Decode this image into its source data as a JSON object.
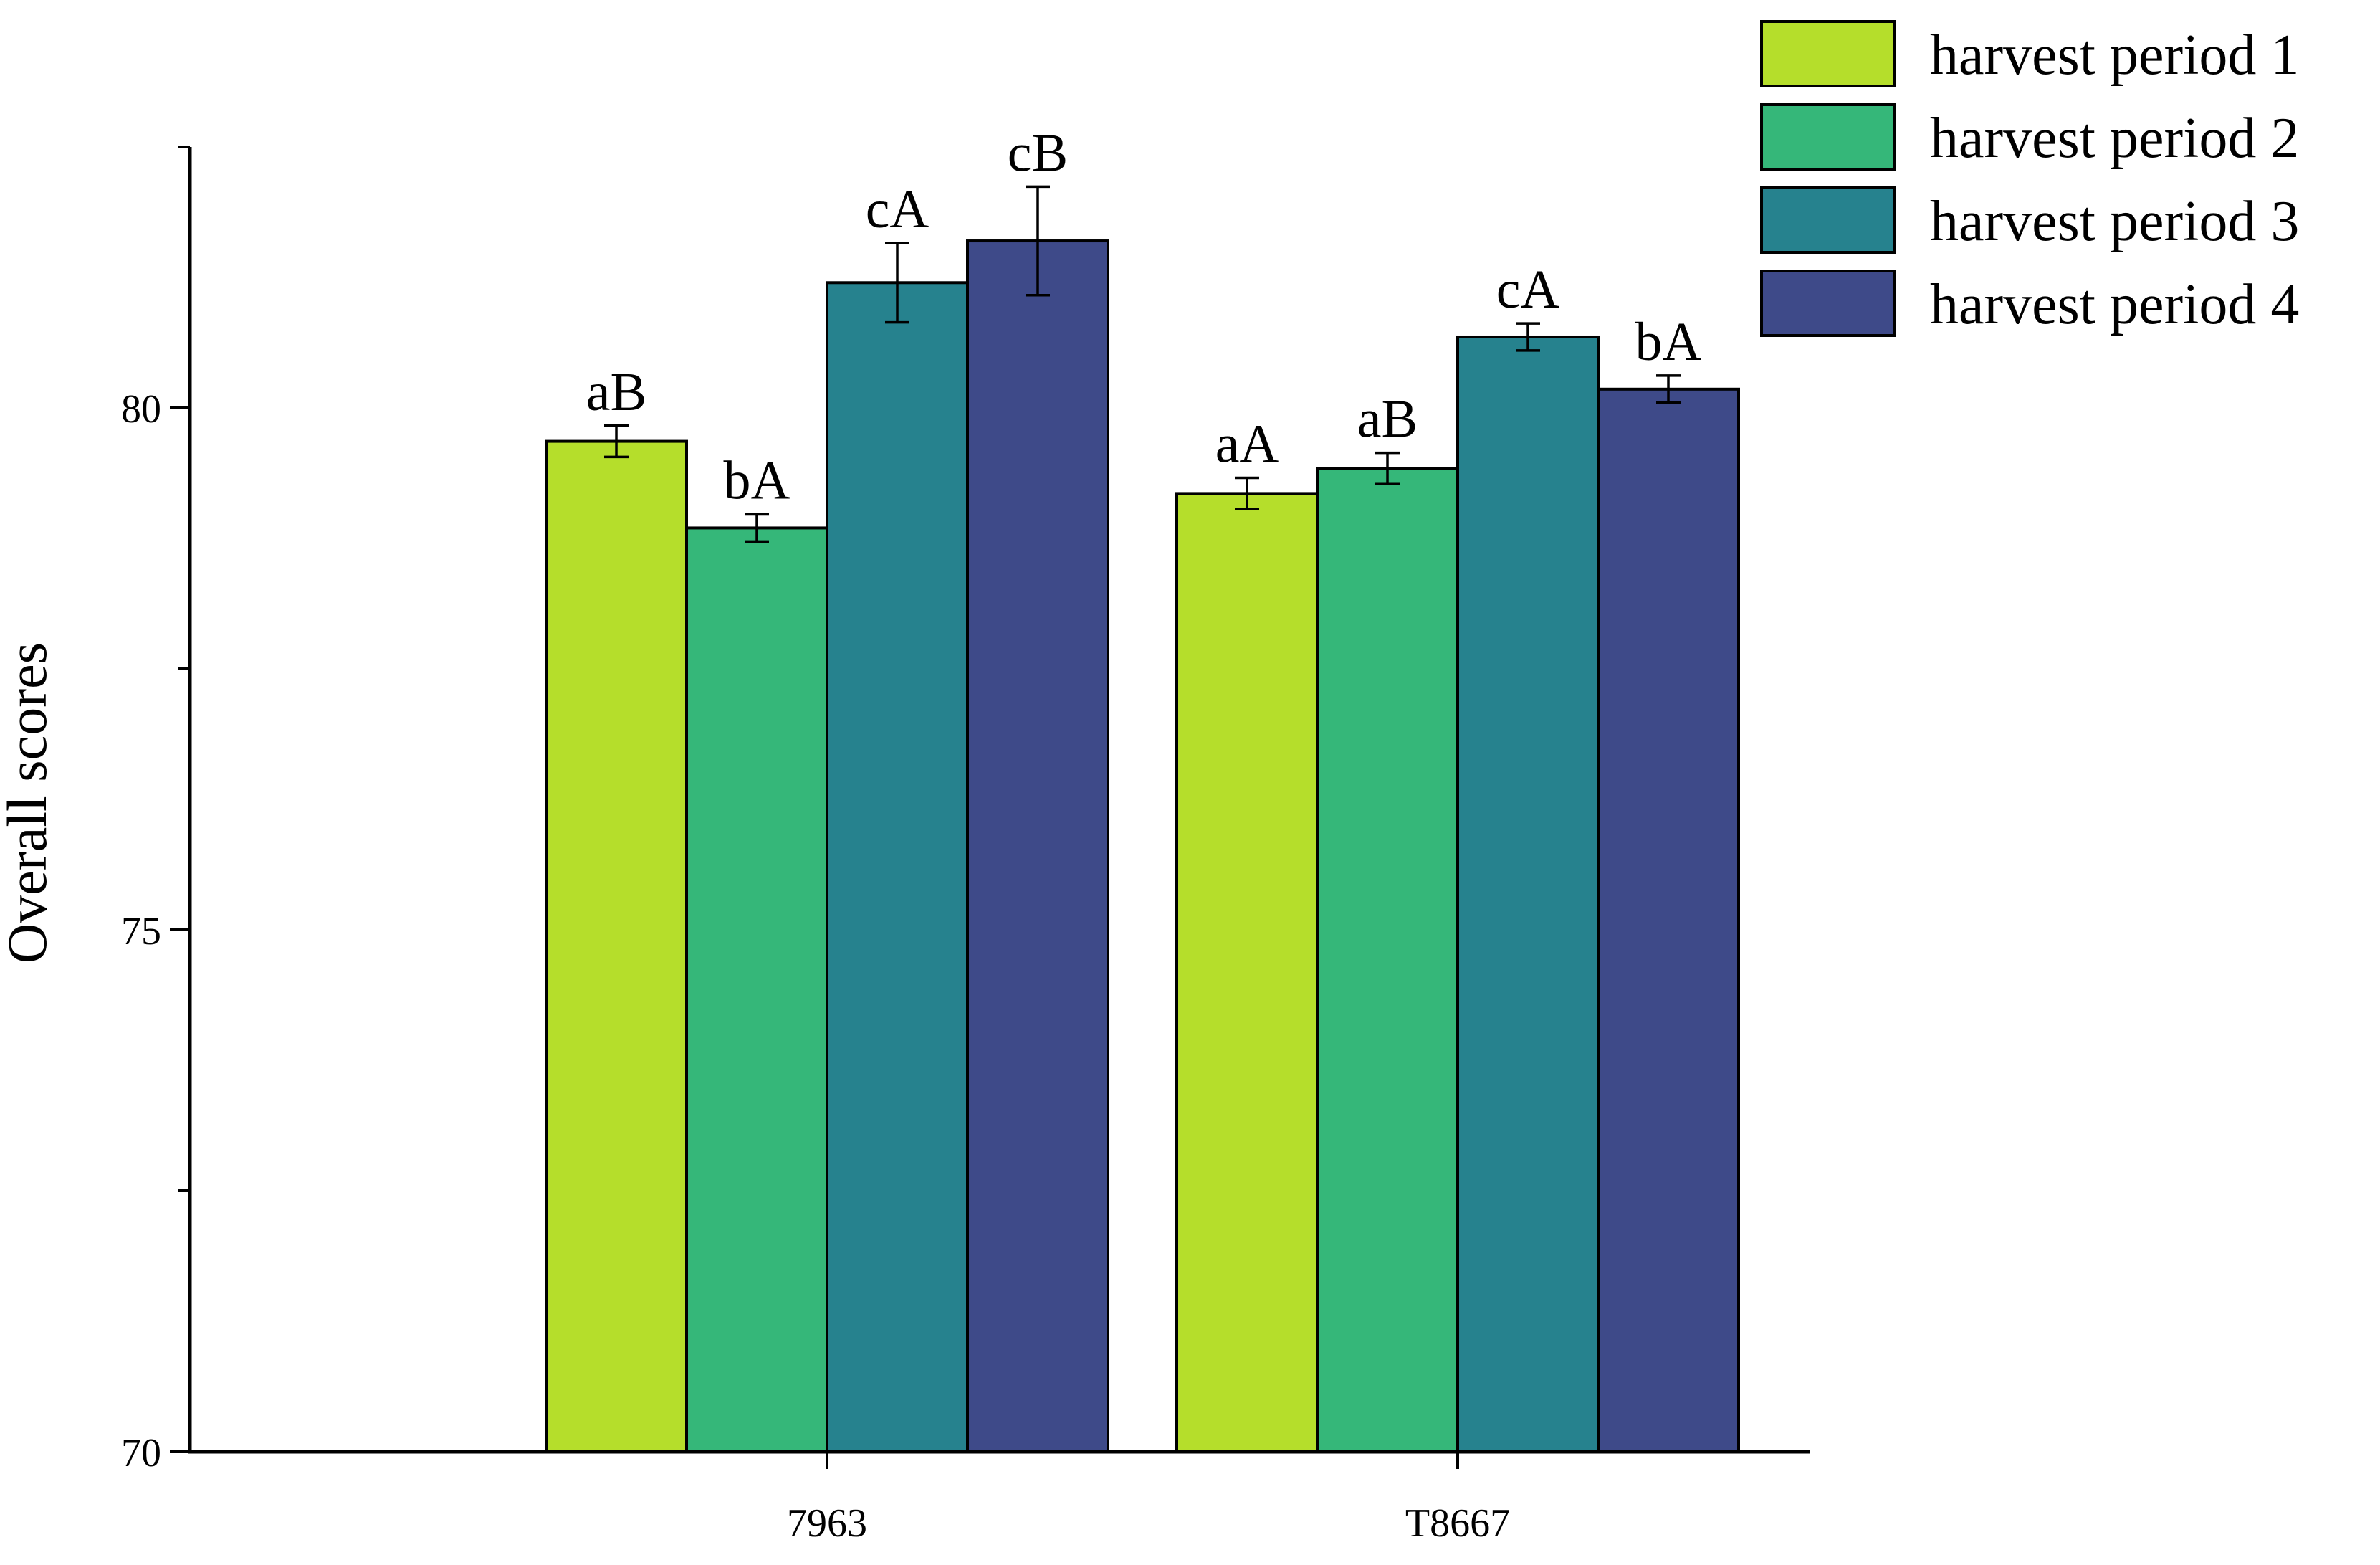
{
  "chart_data": {
    "type": "bar",
    "title": "",
    "xlabel": "",
    "ylabel": "Overall scores",
    "ylim": [
      70,
      82.5
    ],
    "yticks": [
      70,
      75,
      80
    ],
    "grid": false,
    "legend_placement": "top-right",
    "categories": [
      "7963",
      "T8667"
    ],
    "series": [
      {
        "name": "harvest period 1",
        "color": "#B5DE2B",
        "values": [
          79.68,
          79.18
        ],
        "errors": [
          0.15,
          0.15
        ],
        "labels": [
          "aB",
          "aA"
        ]
      },
      {
        "name": "harvest period 2",
        "color": "#35B779",
        "values": [
          78.85,
          79.42
        ],
        "errors": [
          0.13,
          0.15
        ],
        "labels": [
          "bA",
          "aB"
        ]
      },
      {
        "name": "harvest period 3",
        "color": "#26828E",
        "values": [
          81.2,
          80.68
        ],
        "errors": [
          0.38,
          0.13
        ],
        "labels": [
          "cA",
          "cA"
        ]
      },
      {
        "name": "harvest period 4",
        "color": "#3E4A89",
        "values": [
          81.6,
          80.18
        ],
        "errors": [
          0.52,
          0.13
        ],
        "labels": [
          "cB",
          "bA"
        ]
      }
    ]
  }
}
